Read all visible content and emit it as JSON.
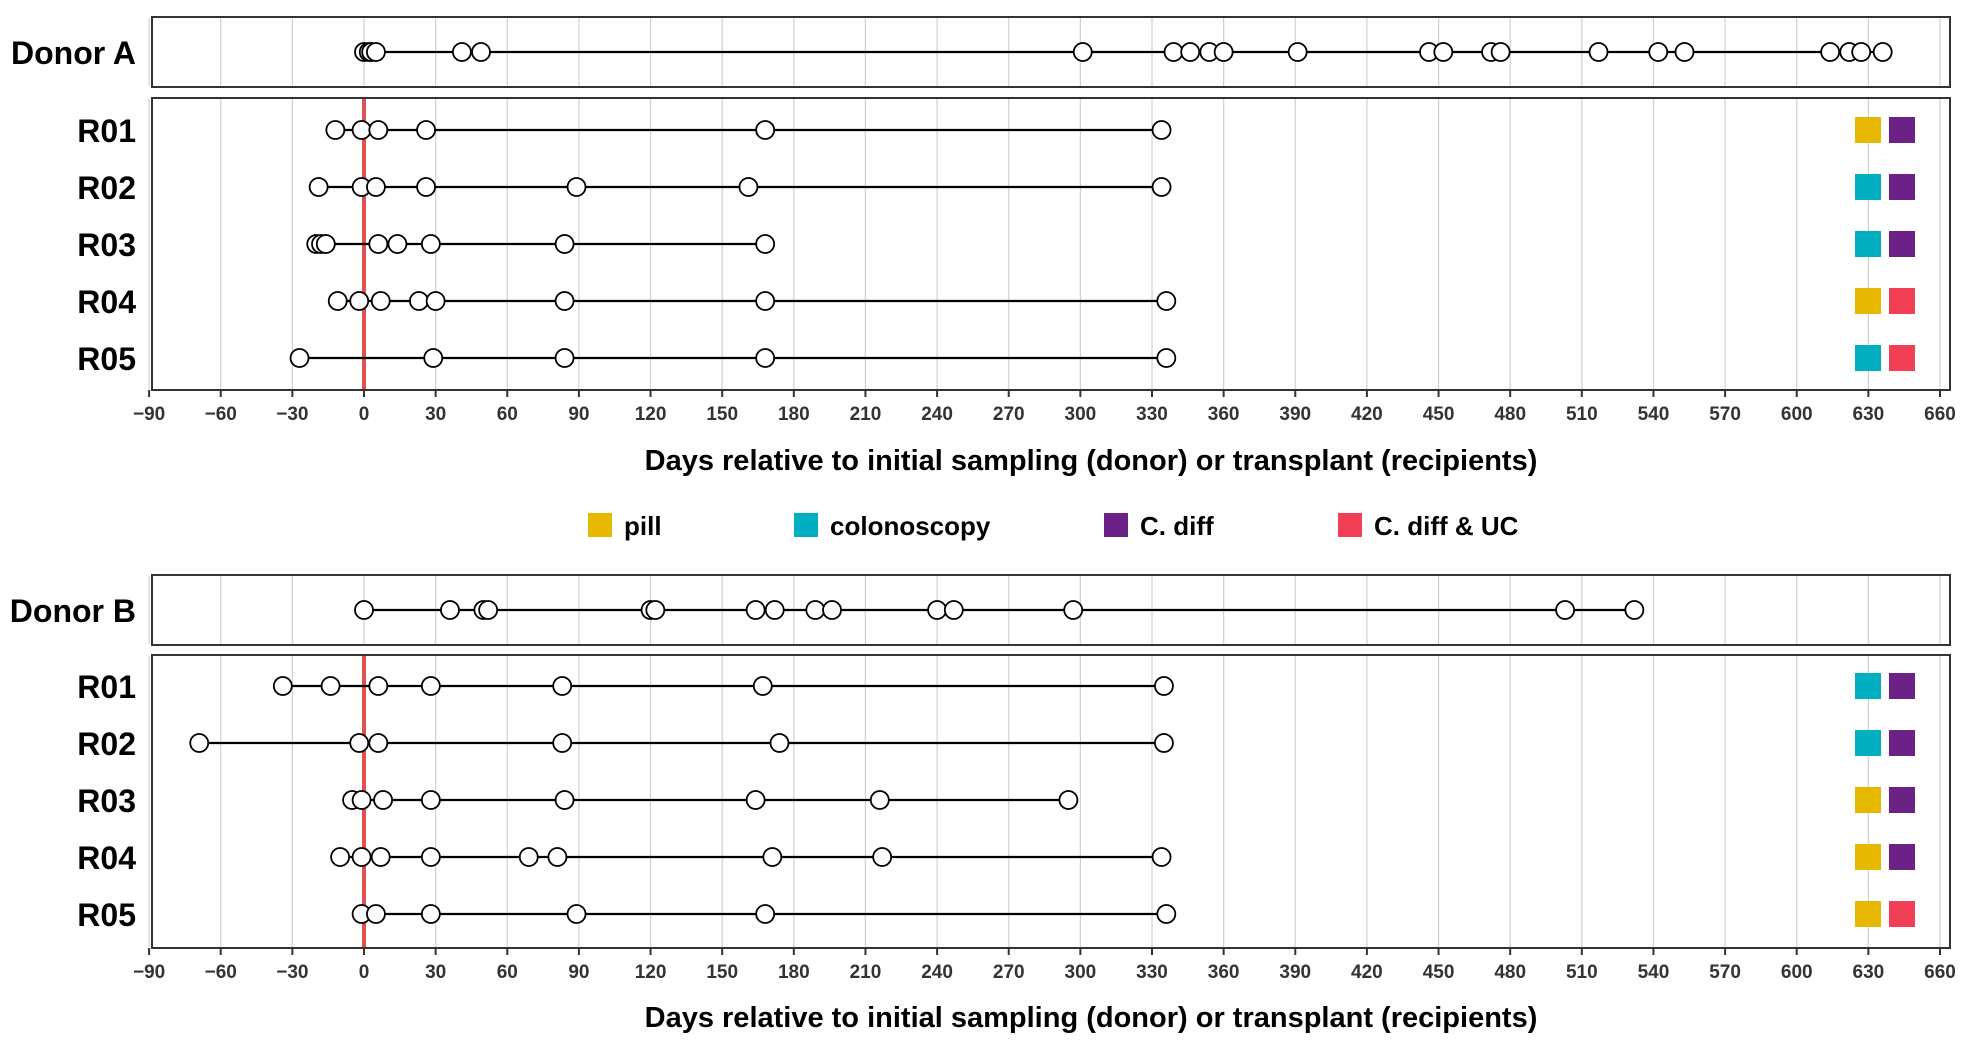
{
  "chart_data": [
    {
      "type": "scatter",
      "title": "",
      "xlabel": "Days relative to initial sampling (donor) or transplant (recipients)",
      "xlim": [
        -90,
        665
      ],
      "xticks": [
        -90,
        -60,
        -30,
        0,
        30,
        60,
        90,
        120,
        150,
        180,
        210,
        240,
        270,
        300,
        330,
        360,
        390,
        420,
        450,
        480,
        510,
        540,
        570,
        600,
        630,
        660
      ],
      "reference_line_x": 0,
      "grid": "vertical",
      "donor": {
        "label": "Donor A",
        "days": [
          0,
          2,
          3,
          5,
          41,
          49,
          301,
          339,
          346,
          354,
          360,
          391,
          446,
          452,
          472,
          476,
          517,
          542,
          553,
          614,
          622,
          627,
          636
        ]
      },
      "recipients": [
        {
          "label": "R01",
          "days": [
            -12,
            -1,
            6,
            26,
            168,
            334
          ],
          "treatments": [
            "pill",
            "C. diff"
          ]
        },
        {
          "label": "R02",
          "days": [
            -19,
            -1,
            5,
            26,
            89,
            161,
            334
          ],
          "treatments": [
            "colonoscopy",
            "C. diff"
          ]
        },
        {
          "label": "R03",
          "days": [
            -20,
            -18,
            -16,
            6,
            14,
            28,
            84,
            168
          ],
          "treatments": [
            "colonoscopy",
            "C. diff"
          ]
        },
        {
          "label": "R04",
          "days": [
            -11,
            -2,
            7,
            23,
            30,
            84,
            168,
            336
          ],
          "treatments": [
            "pill",
            "C. diff & UC"
          ]
        },
        {
          "label": "R05",
          "days": [
            -27,
            29,
            84,
            168,
            336
          ],
          "treatments": [
            "colonoscopy",
            "C. diff & UC"
          ]
        }
      ]
    },
    {
      "type": "scatter",
      "title": "",
      "xlabel": "Days relative to initial sampling (donor) or transplant (recipients)",
      "xlim": [
        -90,
        665
      ],
      "xticks": [
        -90,
        -60,
        -30,
        0,
        30,
        60,
        90,
        120,
        150,
        180,
        210,
        240,
        270,
        300,
        330,
        360,
        390,
        420,
        450,
        480,
        510,
        540,
        570,
        600,
        630,
        660
      ],
      "reference_line_x": 0,
      "grid": "vertical",
      "donor": {
        "label": "Donor B",
        "days": [
          0,
          36,
          50,
          52,
          120,
          122,
          164,
          172,
          189,
          196,
          240,
          247,
          297,
          503,
          532
        ]
      },
      "recipients": [
        {
          "label": "R01",
          "days": [
            -34,
            -14,
            6,
            28,
            83,
            167,
            335
          ],
          "treatments": [
            "colonoscopy",
            "C. diff"
          ]
        },
        {
          "label": "R02",
          "days": [
            -69,
            -2,
            6,
            83,
            174,
            335
          ],
          "treatments": [
            "colonoscopy",
            "C. diff"
          ]
        },
        {
          "label": "R03",
          "days": [
            -5,
            -1,
            8,
            28,
            84,
            164,
            216,
            295
          ],
          "treatments": [
            "pill",
            "C. diff"
          ]
        },
        {
          "label": "R04",
          "days": [
            -10,
            -1,
            7,
            28,
            69,
            81,
            171,
            217,
            334
          ],
          "treatments": [
            "pill",
            "C. diff"
          ]
        },
        {
          "label": "R05",
          "days": [
            -1,
            5,
            28,
            89,
            168,
            336
          ],
          "treatments": [
            "pill",
            "C. diff & UC"
          ]
        }
      ]
    }
  ],
  "legend": {
    "placement": "between-panels",
    "items": [
      {
        "label": "pill",
        "color": "#E6B800"
      },
      {
        "label": "colonoscopy",
        "color": "#00AFC0"
      },
      {
        "label": "C. diff",
        "color": "#6B2185"
      },
      {
        "label": "C. diff & UC",
        "color": "#F23F55"
      }
    ]
  },
  "colors": {
    "reference_line": "#E05050",
    "grid": "#D0D0D0",
    "frame": "#333333",
    "point_fill": "#FFFFFF",
    "point_stroke": "#000000"
  }
}
